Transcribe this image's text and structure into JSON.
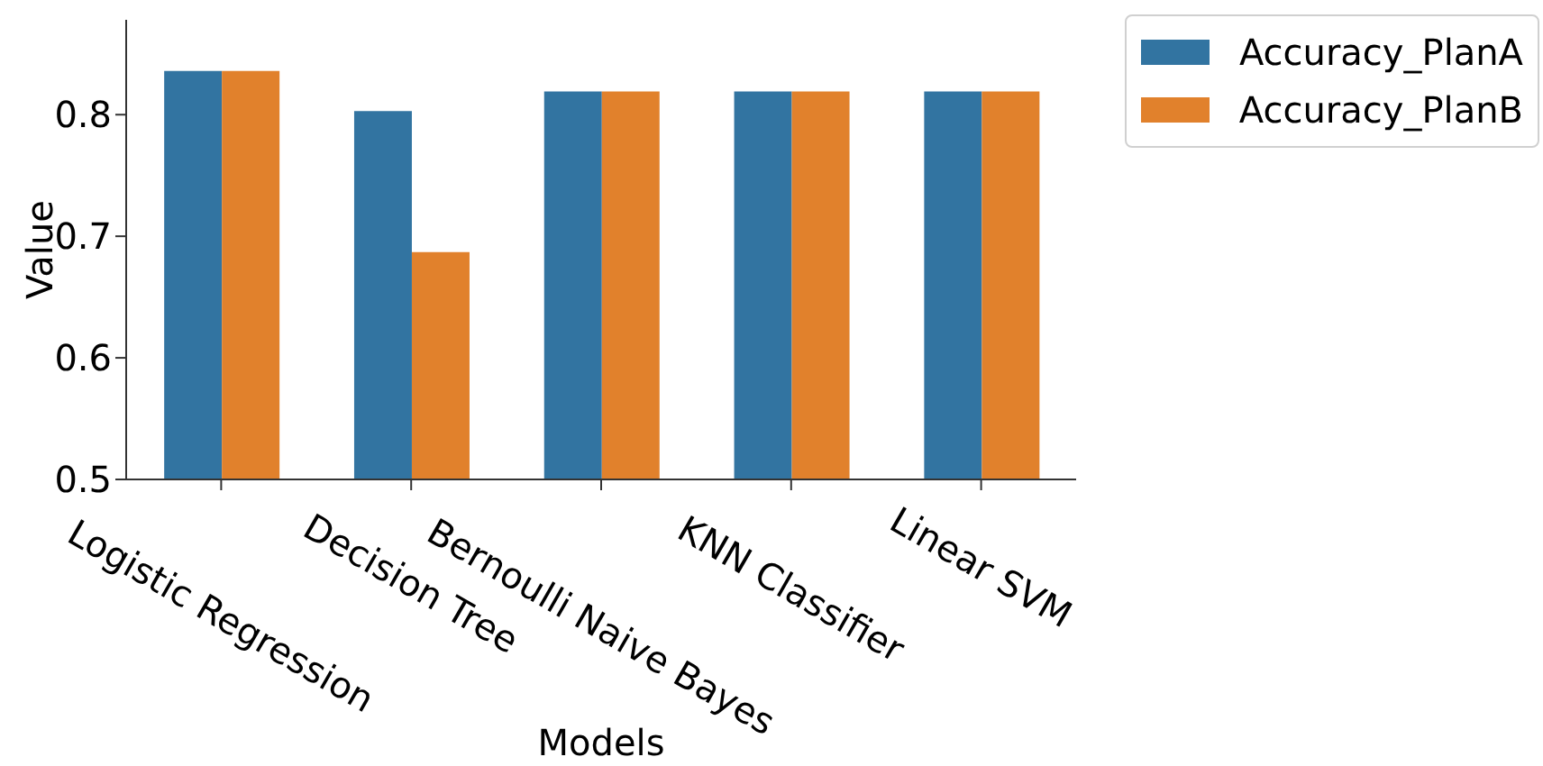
{
  "chart_data": {
    "type": "bar",
    "xlabel": "Models",
    "ylabel": "Value",
    "categories": [
      "Logistic Regression",
      "Decision Tree",
      "Bernoulli Naive Bayes",
      "KNN Classifier",
      "Linear SVM"
    ],
    "series": [
      {
        "name": "Accuracy_PlanA",
        "color": "#3274a1",
        "values": [
          0.836,
          0.803,
          0.819,
          0.819,
          0.819
        ]
      },
      {
        "name": "Accuracy_PlanB",
        "color": "#e1812c",
        "values": [
          0.836,
          0.687,
          0.819,
          0.819,
          0.819
        ]
      }
    ],
    "ylim": [
      0.5,
      0.878
    ],
    "yticks": [
      0.5,
      0.6,
      0.7,
      0.8
    ],
    "grid": false,
    "legend": "top right"
  }
}
